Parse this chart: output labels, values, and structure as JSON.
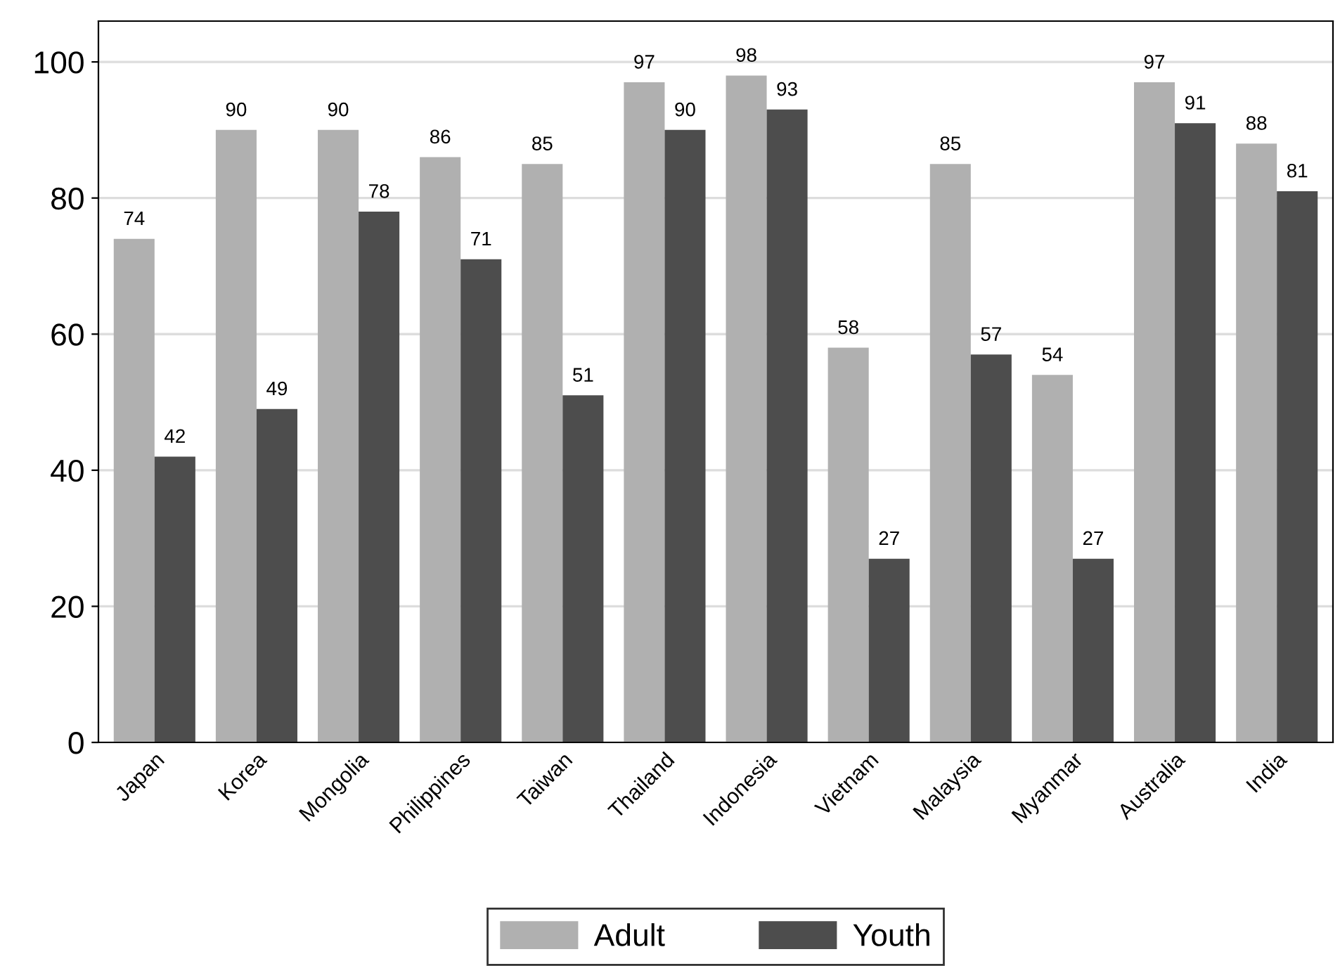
{
  "chart_data": {
    "type": "bar",
    "categories": [
      "Japan",
      "Korea",
      "Mongolia",
      "Philippines",
      "Taiwan",
      "Thailand",
      "Indonesia",
      "Vietnam",
      "Malaysia",
      "Myanmar",
      "Australia",
      "India"
    ],
    "series": [
      {
        "name": "Adult",
        "color": "#b0b0b0",
        "values": [
          74,
          90,
          90,
          86,
          85,
          97,
          98,
          58,
          85,
          54,
          97,
          88
        ]
      },
      {
        "name": "Youth",
        "color": "#4d4d4d",
        "values": [
          42,
          49,
          78,
          71,
          51,
          90,
          93,
          27,
          57,
          27,
          91,
          81
        ]
      }
    ],
    "ylim": [
      0,
      106
    ],
    "yticks": [
      0,
      20,
      40,
      60,
      80,
      100
    ],
    "grid": "y",
    "legend": "bottom",
    "data_labels": true
  }
}
